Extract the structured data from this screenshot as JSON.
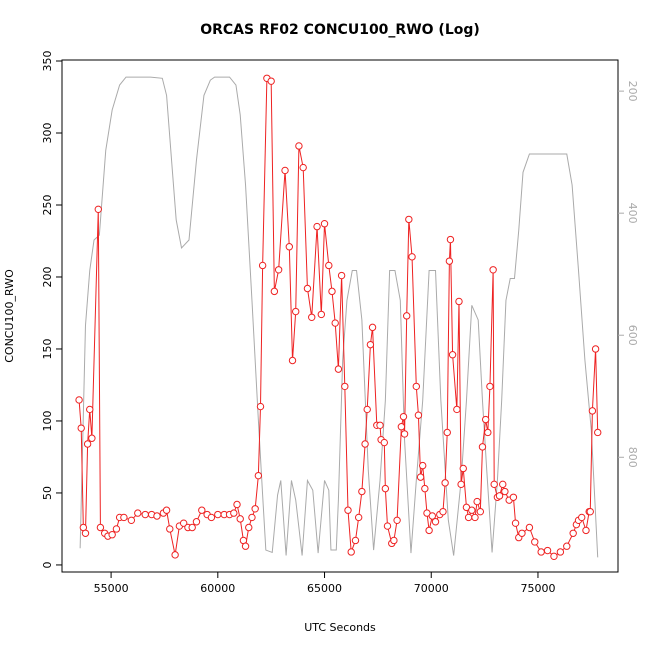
{
  "chart_data": {
    "type": "line",
    "title": "ORCAS RF02 CONCU100_RWO (Log)",
    "x_label": "UTC Seconds",
    "y_label": "CONCU100_RWO",
    "xlim": [
      52700,
      78750
    ],
    "xticks": [
      55000,
      60000,
      65000,
      70000,
      75000
    ],
    "ylim": [
      -4.9,
      350.7
    ],
    "yticks": [
      0,
      50,
      100,
      150,
      200,
      250,
      300,
      350
    ],
    "y2lim": [
      988,
      149
    ],
    "y2ticks": [
      200,
      400,
      600,
      800
    ],
    "y2_color": "#aaaaaa",
    "series": [
      {
        "color": "#aaaaaa",
        "axis": "y2",
        "markers": false,
        "x": [
          53550,
          53800,
          54000,
          54200,
          54450,
          54750,
          55050,
          55400,
          55700,
          56850,
          57400,
          57600,
          57850,
          58050,
          58300,
          58650,
          59000,
          59350,
          59650,
          59850,
          60550,
          60850,
          61050,
          61300,
          61600,
          61900,
          62100,
          62250,
          62550,
          62800,
          62950,
          63200,
          63450,
          63650,
          63950,
          64200,
          64450,
          64700,
          65000,
          65200,
          65300,
          65550,
          65650,
          65850,
          66050,
          66300,
          66500,
          66750,
          67050,
          67300,
          67600,
          67850,
          68050,
          68300,
          68550,
          68750,
          69050,
          69300,
          69600,
          69900,
          70200,
          70450,
          70800,
          71050,
          71400,
          71650,
          71900,
          72200,
          72400,
          72600,
          72850,
          73100,
          73300,
          73500,
          73700,
          73900,
          74100,
          74300,
          74600,
          76350,
          76600,
          76900,
          77200,
          77500,
          77800
        ],
        "values": [
          949,
          584,
          494,
          444,
          436,
          297,
          231,
          190,
          177,
          177,
          179,
          207,
          321,
          411,
          457,
          444,
          313,
          207,
          182,
          177,
          177,
          190,
          239,
          354,
          543,
          739,
          862,
          952,
          956,
          862,
          838,
          961,
          838,
          870,
          961,
          838,
          854,
          957,
          838,
          854,
          952,
          952,
          870,
          641,
          543,
          494,
          494,
          575,
          821,
          952,
          838,
          707,
          494,
          494,
          543,
          772,
          957,
          838,
          707,
          494,
          494,
          707,
          903,
          961,
          838,
          707,
          551,
          575,
          707,
          821,
          956,
          838,
          707,
          543,
          507,
          507,
          428,
          333,
          303,
          303,
          354,
          494,
          641,
          756,
          964
        ]
      },
      {
        "color": "#ee2222",
        "markers": true,
        "x": [
          53500,
          53600,
          53700,
          53800,
          53900,
          54000,
          54100,
          54400,
          54500,
          54700,
          54850,
          55050,
          55250,
          55400,
          55600,
          55950,
          56250,
          56600,
          56900,
          57150,
          57450,
          57600,
          57750,
          58000,
          58200,
          58400,
          58600,
          58800,
          59000,
          59250,
          59500,
          59700,
          60000,
          60300,
          60550,
          60750,
          60900,
          61050,
          61200,
          61300,
          61450,
          61600,
          61750,
          61900,
          62000,
          62100,
          62300,
          62500,
          62650,
          62850,
          63150,
          63350,
          63500,
          63650,
          63800,
          64000,
          64200,
          64400,
          64650,
          64850,
          65000,
          65200,
          65350,
          65500,
          65650,
          65800,
          65950,
          66100,
          66250,
          66450,
          66600,
          66750,
          66900,
          67000,
          67150,
          67250,
          67450,
          67600,
          67650,
          67800,
          67850,
          67950,
          68150,
          68250,
          68400,
          68600,
          68700,
          68750,
          68850,
          68950,
          69100,
          69300,
          69400,
          69500,
          69600,
          69700,
          69800,
          69900,
          70050,
          70200,
          70400,
          70550,
          70650,
          70750,
          70850,
          70900,
          71000,
          71200,
          71300,
          71400,
          71500,
          71650,
          71750,
          71900,
          72050,
          72150,
          72300,
          72400,
          72550,
          72650,
          72750,
          72900,
          72950,
          73100,
          73200,
          73350,
          73450,
          73650,
          73850,
          73950,
          74100,
          74250,
          74600,
          74850,
          75150,
          75450,
          75750,
          76050,
          76350,
          76650,
          76800,
          76900,
          77050,
          77250,
          77400,
          77450,
          77550,
          77700,
          77800
        ],
        "values": [
          114.6,
          95,
          26,
          22,
          84,
          108,
          88,
          247,
          26,
          22,
          20,
          21,
          25,
          33,
          33,
          31,
          36,
          35,
          35,
          34,
          36,
          38,
          25,
          7,
          27,
          29,
          26,
          26,
          30,
          38,
          35,
          33,
          35,
          35,
          35,
          36,
          42,
          32,
          17,
          13,
          26,
          33,
          39,
          62,
          110,
          208,
          338,
          336,
          190,
          205,
          274,
          221,
          142,
          176,
          291,
          276,
          192,
          172,
          235,
          174,
          237,
          208,
          190,
          168,
          136,
          201,
          124,
          38,
          9,
          17,
          33,
          51,
          84,
          108,
          153,
          165,
          97,
          97,
          87,
          85,
          53,
          27,
          15,
          17,
          31,
          96,
          103,
          91,
          173,
          240,
          214,
          124,
          104,
          61,
          69,
          53,
          36,
          24,
          34,
          30,
          35,
          37,
          57,
          92,
          211,
          226,
          146,
          108,
          183,
          56,
          67,
          40,
          33,
          38,
          33,
          44,
          37,
          82,
          101,
          92,
          124,
          205,
          56,
          47,
          48,
          56,
          51,
          45,
          47,
          29,
          19,
          22,
          26,
          16,
          9,
          10,
          6,
          9,
          13,
          22,
          28,
          31,
          33,
          24,
          37,
          37,
          107,
          150,
          92
        ]
      }
    ]
  }
}
